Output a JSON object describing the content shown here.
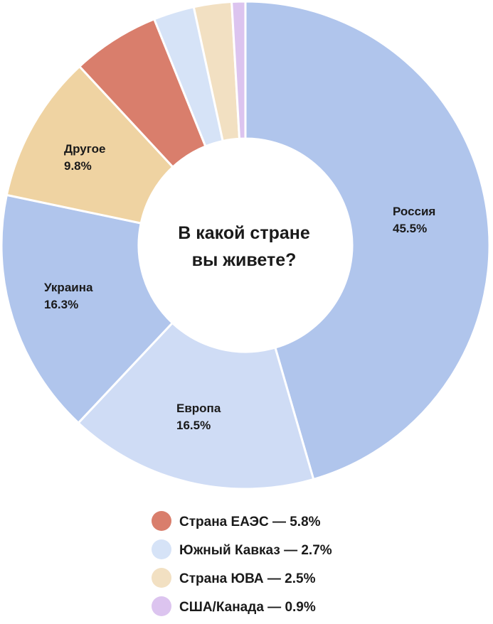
{
  "chart_data": {
    "type": "pie",
    "title": "В какой стране вы живете?",
    "title_lines": [
      "В какой стране",
      "вы живете?"
    ],
    "value_suffix": "%",
    "slices": [
      {
        "name": "Россия",
        "value": 45.5,
        "value_label": "45.5%",
        "color": "#b0c5ec",
        "labeled": true
      },
      {
        "name": "Европа",
        "value": 16.5,
        "value_label": "16.5%",
        "color": "#cfdcf5",
        "labeled": true
      },
      {
        "name": "Украина",
        "value": 16.3,
        "value_label": "16.3%",
        "color": "#b0c5ec",
        "labeled": true
      },
      {
        "name": "Другое",
        "value": 9.8,
        "value_label": "9.8%",
        "color": "#efd3a2",
        "labeled": true
      },
      {
        "name": "Страна ЕАЭС",
        "value": 5.8,
        "value_label": "5.8%",
        "color": "#d97e6c",
        "labeled": false
      },
      {
        "name": "Южный Кавказ",
        "value": 2.7,
        "value_label": "2.7%",
        "color": "#d6e3f7",
        "labeled": false
      },
      {
        "name": "Страна ЮВА",
        "value": 2.5,
        "value_label": "2.5%",
        "color": "#f2e0c2",
        "labeled": false
      },
      {
        "name": "США/Канада",
        "value": 0.9,
        "value_label": "0.9%",
        "color": "#dcc4ef",
        "labeled": false
      }
    ],
    "legend": [
      {
        "label": "Страна ЕАЭС — 5.8%",
        "color": "#d97e6c"
      },
      {
        "label": "Южный Кавказ — 2.7%",
        "color": "#d6e3f7"
      },
      {
        "label": "Страна ЮВА — 2.5%",
        "color": "#f2e0c2"
      },
      {
        "label": "США/Канада — 0.9%",
        "color": "#dcc4ef"
      }
    ],
    "legend_position": "bottom"
  }
}
